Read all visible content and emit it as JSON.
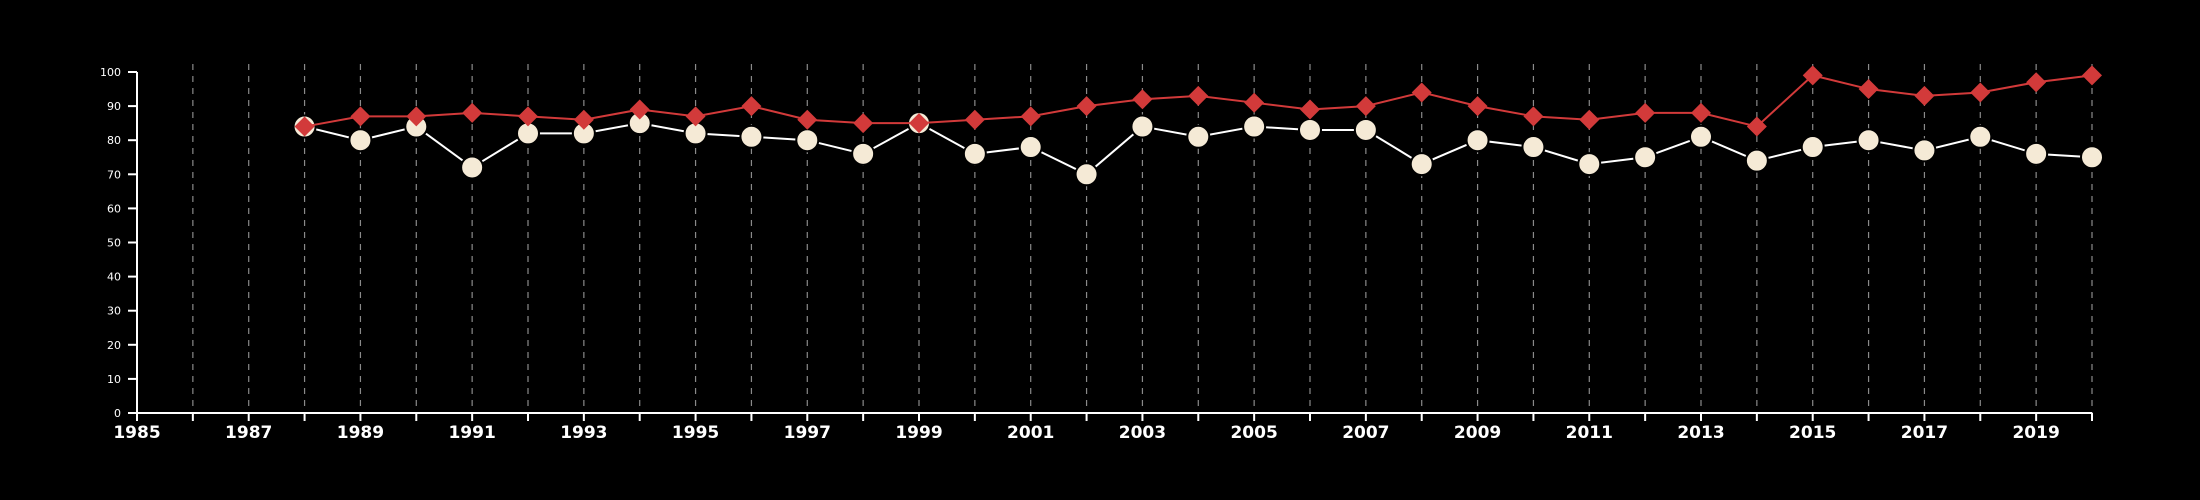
{
  "chart_data": {
    "type": "line",
    "title": "",
    "xlabel": "",
    "ylabel": "",
    "xlim": [
      1985,
      2020
    ],
    "ylim": [
      0,
      100
    ],
    "y_ticks": [
      0,
      10,
      20,
      30,
      40,
      50,
      60,
      70,
      80,
      90,
      100
    ],
    "x_tick_labels": [
      "1985",
      "1987",
      "1989",
      "1991",
      "1993",
      "1995",
      "1997",
      "1999",
      "2001",
      "2003",
      "2005",
      "2007",
      "2009",
      "2011",
      "2013",
      "2015",
      "2017",
      "2019"
    ],
    "x_tick_values": [
      1985,
      1987,
      1989,
      1991,
      1993,
      1995,
      1997,
      1999,
      2001,
      2003,
      2005,
      2007,
      2009,
      2011,
      2013,
      2015,
      2017,
      2019
    ],
    "vertical_gridlines": "dashed, every year",
    "legend": "none",
    "background_color": "#000000",
    "series": [
      {
        "marker": "diamond",
        "color": "#d23a3a",
        "x": [
          1988,
          1989,
          1990,
          1991,
          1992,
          1993,
          1994,
          1995,
          1996,
          1997,
          1998,
          1999,
          2000,
          2001,
          2002,
          2003,
          2004,
          2005,
          2006,
          2007,
          2008,
          2009,
          2010,
          2011,
          2012,
          2013,
          2014,
          2015,
          2016,
          2017,
          2018,
          2019,
          2020
        ],
        "values": [
          84,
          87,
          87,
          88,
          87,
          86,
          89,
          87,
          90,
          86,
          85,
          85,
          86,
          87,
          90,
          92,
          93,
          91,
          89,
          90,
          94,
          90,
          87,
          86,
          88,
          88,
          84,
          99,
          95,
          93,
          94,
          97,
          99
        ]
      },
      {
        "marker": "circle",
        "color": "#f5ead6",
        "line_color": "#ffffff",
        "x": [
          1988,
          1989,
          1990,
          1991,
          1992,
          1993,
          1994,
          1995,
          1996,
          1997,
          1998,
          1999,
          2000,
          2001,
          2002,
          2003,
          2004,
          2005,
          2006,
          2007,
          2008,
          2009,
          2010,
          2011,
          2012,
          2013,
          2014,
          2015,
          2016,
          2017,
          2018,
          2019,
          2020
        ],
        "values": [
          84,
          80,
          84,
          72,
          82,
          82,
          85,
          82,
          81,
          80,
          76,
          85,
          76,
          78,
          70,
          84,
          81,
          84,
          83,
          83,
          73,
          80,
          78,
          73,
          75,
          81,
          74,
          78,
          80,
          77,
          81,
          76,
          75
        ]
      }
    ]
  }
}
